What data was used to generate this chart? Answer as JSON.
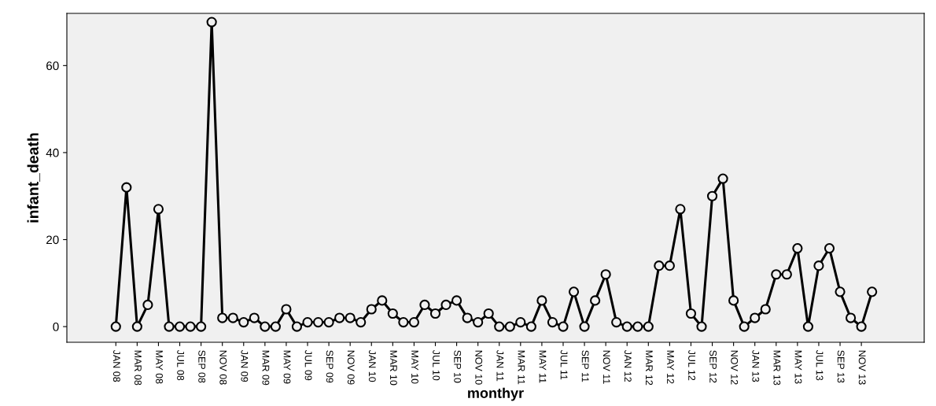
{
  "chart_data": {
    "type": "line",
    "xlabel": "monthyr",
    "ylabel": "infant_death",
    "categories": [
      "JAN 08",
      null,
      "MAR 08",
      null,
      "MAY 08",
      null,
      "JUL 08",
      null,
      "SEP 08",
      null,
      "NOV 08",
      null,
      "JAN 09",
      null,
      "MAR 09",
      null,
      "MAY 09",
      null,
      "JUL 09",
      null,
      "SEP 09",
      null,
      "NOV 09",
      null,
      "JAN 10",
      null,
      "MAR 10",
      null,
      "MAY 10",
      null,
      "JUL 10",
      null,
      "SEP 10",
      null,
      "NOV 10",
      null,
      "JAN 11",
      null,
      "MAR 11",
      null,
      "MAY 11",
      null,
      "JUL 11",
      null,
      "SEP 11",
      null,
      "NOV 11",
      null,
      "JAN 12",
      null,
      "MAR 12",
      null,
      "MAY 12",
      null,
      "JUL 12",
      null,
      "SEP 12",
      null,
      "NOV 12",
      null,
      "JAN 13",
      null,
      "MAR 13",
      null,
      "MAY 13",
      null,
      "JUL 13",
      null,
      "SEP 13",
      null,
      "NOV 13",
      null
    ],
    "series": [
      {
        "color": "#000000",
        "values": [
          0,
          32,
          0,
          5,
          27,
          0,
          0,
          0,
          0,
          70,
          2,
          2,
          1,
          2,
          0,
          0,
          4,
          0,
          1,
          1,
          1,
          2,
          2,
          1,
          4,
          6,
          3,
          1,
          1,
          5,
          3,
          5,
          6,
          2,
          1,
          3,
          0,
          0,
          1,
          0,
          6,
          1,
          0,
          8,
          0,
          6,
          12,
          1,
          0,
          0,
          0,
          14,
          14,
          27,
          3,
          0,
          30,
          34,
          6,
          0,
          2,
          4,
          12,
          12,
          18,
          0,
          14,
          18,
          8,
          2,
          0,
          8
        ]
      }
    ],
    "ylim": [
      -3.6,
      72
    ],
    "yticks": [
      0,
      20,
      40,
      60
    ],
    "marker": "circle",
    "line_style": "solid",
    "grid": false,
    "legend": false
  }
}
